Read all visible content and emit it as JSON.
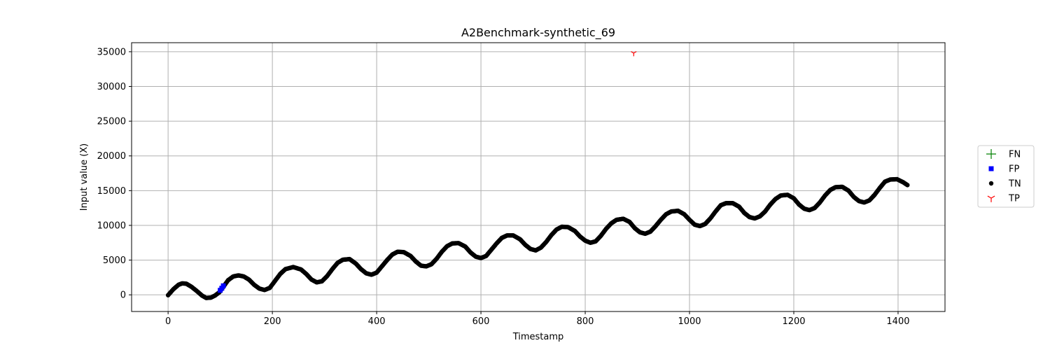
{
  "chart_data": {
    "type": "scatter",
    "title": "A2Benchmark-synthetic_69",
    "xlabel": "Timestamp",
    "ylabel": "Input value (X)",
    "xlim": [
      -70,
      1490
    ],
    "ylim": [
      -2400,
      36300
    ],
    "x_ticks": [
      0,
      200,
      400,
      600,
      800,
      1000,
      1200,
      1400
    ],
    "y_ticks": [
      0,
      5000,
      10000,
      15000,
      20000,
      25000,
      30000,
      35000
    ],
    "grid": true,
    "legend_placement": "center-right-outside",
    "legend": [
      {
        "label": "FN",
        "marker": "plus",
        "color": "#008000"
      },
      {
        "label": "FP",
        "marker": "square",
        "color": "#0000ff"
      },
      {
        "label": "TN",
        "marker": "circle",
        "color": "#000000"
      },
      {
        "label": "TP",
        "marker": "tri_down",
        "color": "#ff0000"
      }
    ],
    "series": [
      {
        "name": "TN",
        "marker": "circle",
        "color": "#000000",
        "x": [
          0,
          10,
          20,
          27,
          35,
          45,
          55,
          65,
          73,
          82,
          90,
          98,
          105,
          115,
          125,
          135,
          145,
          155,
          165,
          175,
          185,
          195,
          205,
          215,
          225,
          240,
          255,
          265,
          275,
          285,
          295,
          305,
          315,
          325,
          335,
          348,
          360,
          370,
          380,
          390,
          400,
          410,
          420,
          430,
          440,
          452,
          465,
          475,
          485,
          495,
          505,
          515,
          525,
          535,
          545,
          557,
          570,
          580,
          590,
          600,
          610,
          620,
          630,
          640,
          650,
          662,
          675,
          685,
          695,
          705,
          715,
          725,
          735,
          745,
          755,
          767,
          780,
          790,
          800,
          810,
          820,
          830,
          840,
          850,
          860,
          873,
          885,
          895,
          905,
          915,
          925,
          935,
          945,
          955,
          965,
          978,
          990,
          1000,
          1010,
          1020,
          1030,
          1040,
          1050,
          1060,
          1070,
          1083,
          1095,
          1105,
          1115,
          1125,
          1135,
          1145,
          1155,
          1165,
          1175,
          1188,
          1200,
          1210,
          1220,
          1230,
          1240,
          1250,
          1260,
          1270,
          1280,
          1293,
          1305,
          1315,
          1325,
          1335,
          1345,
          1355,
          1365,
          1375,
          1385,
          1398,
          1410,
          1418
        ],
        "y": [
          -50,
          800,
          1450,
          1650,
          1600,
          1150,
          550,
          -100,
          -450,
          -400,
          -100,
          350,
          1050,
          2100,
          2650,
          2800,
          2650,
          2200,
          1450,
          900,
          700,
          1000,
          2000,
          3000,
          3700,
          4000,
          3650,
          3000,
          2200,
          1800,
          1950,
          2700,
          3700,
          4600,
          5050,
          5150,
          4500,
          3700,
          3100,
          2900,
          3200,
          4100,
          5000,
          5800,
          6200,
          6150,
          5600,
          4800,
          4200,
          4100,
          4400,
          5200,
          6200,
          7000,
          7400,
          7450,
          6950,
          6100,
          5500,
          5300,
          5600,
          6500,
          7400,
          8200,
          8550,
          8550,
          8000,
          7200,
          6600,
          6400,
          6800,
          7600,
          8600,
          9400,
          9800,
          9750,
          9200,
          8400,
          7800,
          7500,
          7700,
          8500,
          9500,
          10300,
          10800,
          10950,
          10500,
          9600,
          9000,
          8800,
          9100,
          9900,
          10800,
          11600,
          12000,
          12100,
          11600,
          10800,
          10100,
          9900,
          10200,
          11000,
          12000,
          12900,
          13200,
          13200,
          12700,
          11800,
          11200,
          11000,
          11300,
          12000,
          13000,
          13800,
          14300,
          14400,
          13900,
          13000,
          12400,
          12200,
          12500,
          13300,
          14300,
          15100,
          15500,
          15550,
          15000,
          14100,
          13500,
          13300,
          13600,
          14400,
          15400,
          16300,
          16600,
          16650,
          16200,
          15800
        ]
      },
      {
        "name": "FP",
        "marker": "square",
        "color": "#0000ff",
        "x": [
          100,
          103,
          106
        ],
        "y": [
          650,
          950,
          1300
        ]
      },
      {
        "name": "TP",
        "marker": "tri_down",
        "color": "#ff0000",
        "x": [
          893
        ],
        "y": [
          34800
        ]
      }
    ]
  }
}
